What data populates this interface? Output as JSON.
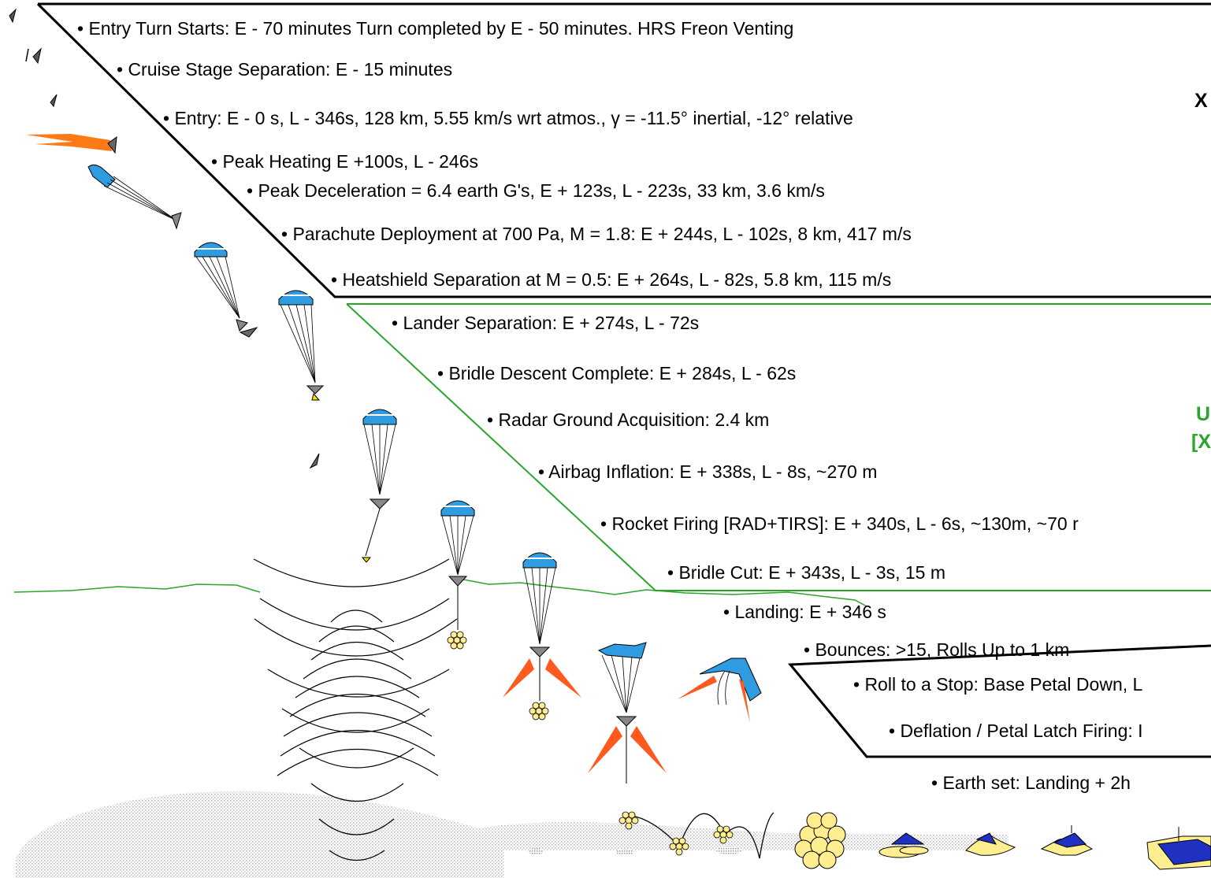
{
  "events": [
    "• Entry Turn Starts: E - 70 minutes  Turn completed by E - 50 minutes.  HRS Freon Venting",
    "• Cruise Stage Separation: E - 15 minutes",
    "• Entry: E - 0 s, L - 346s, 128  km, 5.55 km/s wrt atmos., γ = -11.5° inertial, -12° relative",
    "• Peak Heating E +100s, L - 246s",
    "•  Peak Deceleration = 6.4 earth G's, E + 123s, L - 223s, 33 km, 3.6 km/s",
    "• Parachute Deployment  at 700 Pa, M = 1.8: E + 244s, L - 102s, 8 km, 417 m/s",
    "• Heatshield Separation at M = 0.5: E + 264s, L - 82s, 5.8 km, 115 m/s",
    "• Lander Separation: E + 274s, L - 72s",
    "• Bridle Descent Complete: E + 284s, L - 62s",
    "• Radar Ground Acquisition: 2.4 km",
    "• Airbag Inflation:  E + 338s, L - 8s, ~270 m",
    "• Rocket Firing [RAD+TIRS]:  E + 340s, L - 6s, ~130m, ~70 r",
    "• Bridle Cut: E + 343s, L - 3s, 15 m",
    "• Landing: E + 346 s",
    "• Bounces: >15, Rolls Up to 1 km",
    "• Roll to a Stop: Base Petal Down, L",
    "• Deflation / Petal Latch Firing: I",
    "• Earth set: Landing + 2h"
  ],
  "side_labels": {
    "x_top": "X",
    "u_green": "U",
    "x_bracket_green": "[X"
  },
  "colors": {
    "entry_divider": "#000000",
    "descent_divider": "#2aa52a",
    "ground_line": "#2aa52a",
    "parachute_canopy": "#2f9be0",
    "retro_rocket": "#ff5a1e",
    "airbag": "#ffee90",
    "lander_petal": "#2030c0"
  }
}
